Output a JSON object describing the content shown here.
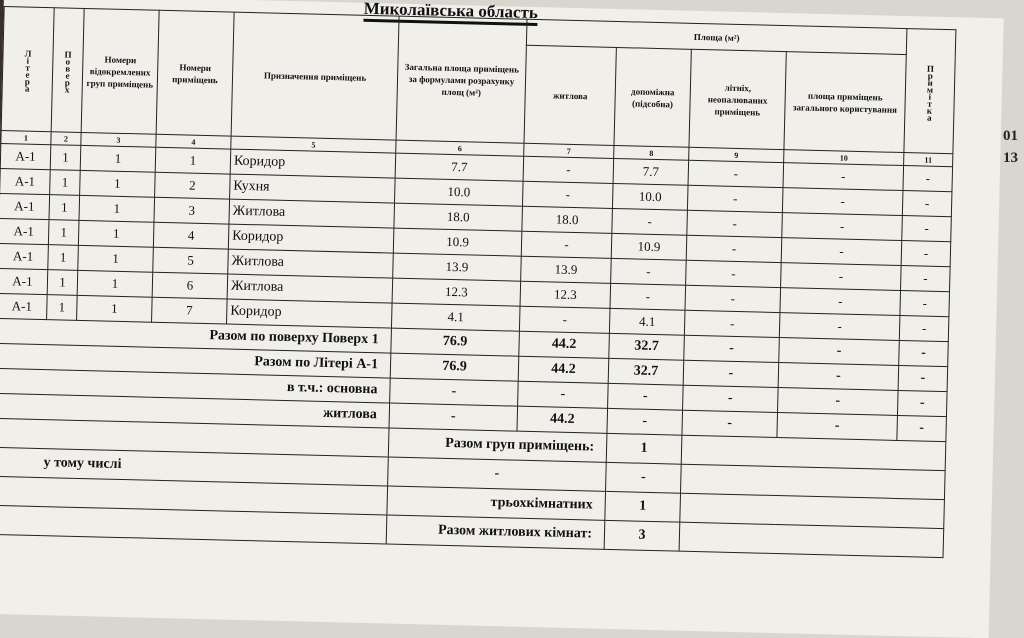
{
  "title": "Миколаївська область",
  "header": {
    "c1": "Літера",
    "c2": "Поверх",
    "c3": "Номери відокремлених груп приміщень",
    "c4": "Номери приміщень",
    "c5": "Призначення приміщень",
    "c6": "Загальна площа приміщень за формулами розрахунку площ (м²)",
    "area_group": "Площа (м²)",
    "c7": "житлова",
    "c8": "допоміжна (підсобна)",
    "c9": "літніх, неопалюваних приміщень",
    "c10": "площа приміщень загального користування",
    "c11": "Примітка",
    "numbers": [
      "1",
      "2",
      "3",
      "4",
      "5",
      "6",
      "7",
      "8",
      "9",
      "10",
      "11"
    ]
  },
  "rows": [
    [
      "А-1",
      "1",
      "1",
      "1",
      "Коридор",
      "7.7",
      "-",
      "7.7",
      "-",
      "-",
      "-"
    ],
    [
      "А-1",
      "1",
      "1",
      "2",
      "Кухня",
      "10.0",
      "-",
      "10.0",
      "-",
      "-",
      "-"
    ],
    [
      "А-1",
      "1",
      "1",
      "3",
      "Житлова",
      "18.0",
      "18.0",
      "-",
      "-",
      "-",
      "-"
    ],
    [
      "А-1",
      "1",
      "1",
      "4",
      "Коридор",
      "10.9",
      "-",
      "10.9",
      "-",
      "-",
      "-"
    ],
    [
      "А-1",
      "1",
      "1",
      "5",
      "Житлова",
      "13.9",
      "13.9",
      "-",
      "-",
      "-",
      "-"
    ],
    [
      "А-1",
      "1",
      "1",
      "6",
      "Житлова",
      "12.3",
      "12.3",
      "-",
      "-",
      "-",
      "-"
    ],
    [
      "А-1",
      "1",
      "1",
      "7",
      "Коридор",
      "4.1",
      "-",
      "4.1",
      "-",
      "-",
      "-"
    ]
  ],
  "summary": [
    {
      "label": "Разом по поверху Поверх 1",
      "values": [
        "76.9",
        "44.2",
        "32.7",
        "-",
        "-",
        "-"
      ]
    },
    {
      "label": "Разом по Літері А-1",
      "values": [
        "76.9",
        "44.2",
        "32.7",
        "-",
        "-",
        "-"
      ]
    },
    {
      "label": "в т.ч.: основна",
      "values": [
        "-",
        "-",
        "-",
        "-",
        "-",
        "-"
      ]
    },
    {
      "label": "житлова",
      "values": [
        "-",
        "44.2",
        "-",
        "-",
        "-",
        "-"
      ]
    }
  ],
  "bottom": {
    "groups_label": "Разом груп приміщень:",
    "groups_value": "1",
    "incl_label": "у тому числі",
    "incl_sub": "-",
    "incl_value": "-",
    "three_label": "трьохкімнатних",
    "three_value": "1",
    "rooms_label": "Разом житлових кімнат:",
    "rooms_value": "3"
  },
  "side_marks": [
    "01",
    "13"
  ]
}
